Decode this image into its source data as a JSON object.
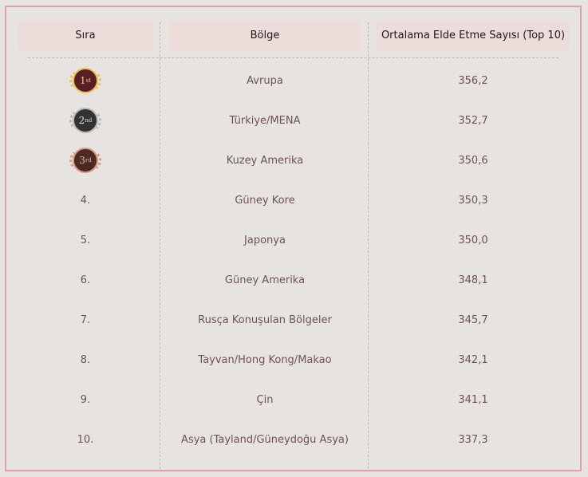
{
  "headers": {
    "rank": "Sıra",
    "region": "Bölge",
    "average": "Ortalama Elde Etme Sayısı (Top 10)"
  },
  "colors": {
    "gold": "#e8bf5a",
    "silver": "#b9b9b9",
    "bronze": "#d49a86",
    "text": "#6e5257",
    "border": "#d9a5a5"
  },
  "rows": [
    {
      "rank": "1st",
      "medal": "gold",
      "medal_num": "1",
      "medal_suffix": "st",
      "region": "Avrupa",
      "value": "356,2"
    },
    {
      "rank": "2nd",
      "medal": "silver",
      "medal_num": "2",
      "medal_suffix": "nd",
      "region": "Türkiye/MENA",
      "value": "352,7"
    },
    {
      "rank": "3rd",
      "medal": "bronze",
      "medal_num": "3",
      "medal_suffix": "rd",
      "region": "Kuzey Amerika",
      "value": "350,6"
    },
    {
      "rank": "4.",
      "region": "Güney Kore",
      "value": "350,3"
    },
    {
      "rank": "5.",
      "region": "Japonya",
      "value": "350,0"
    },
    {
      "rank": "6.",
      "region": "Güney Amerika",
      "value": "348,1"
    },
    {
      "rank": "7.",
      "region": "Rusça Konuşulan Bölgeler",
      "value": "345,7"
    },
    {
      "rank": "8.",
      "region": "Tayvan/Hong Kong/Makao",
      "value": "342,1"
    },
    {
      "rank": "9.",
      "region": "Çin",
      "value": "341,1"
    },
    {
      "rank": "10.",
      "region": "Asya (Tayland/Güneydoğu Asya)",
      "value": "337,3"
    }
  ]
}
